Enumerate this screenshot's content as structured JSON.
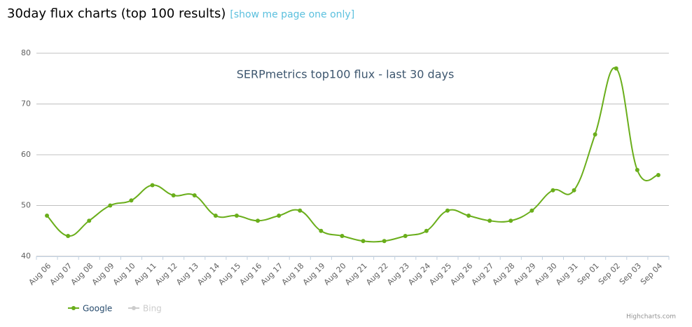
{
  "header": {
    "title": "30day flux charts (top 100 results)",
    "link": "[show me page one only]"
  },
  "chart_data": {
    "type": "line",
    "title": "SERPmetrics top100 flux - last 30 days",
    "categories": [
      "Aug 06",
      "Aug 07",
      "Aug 08",
      "Aug 09",
      "Aug 10",
      "Aug 11",
      "Aug 12",
      "Aug 13",
      "Aug 14",
      "Aug 15",
      "Aug 16",
      "Aug 17",
      "Aug 18",
      "Aug 19",
      "Aug 20",
      "Aug 21",
      "Aug 22",
      "Aug 23",
      "Aug 24",
      "Aug 25",
      "Aug 26",
      "Aug 27",
      "Aug 28",
      "Aug 29",
      "Aug 30",
      "Aug 31",
      "Sep 01",
      "Sep 02",
      "Sep 03",
      "Sep 04"
    ],
    "series": [
      {
        "name": "Google",
        "color": "#6aae1b",
        "values": [
          48,
          44,
          47,
          50,
          51,
          54,
          52,
          52,
          48,
          48,
          47,
          48,
          49,
          45,
          44,
          43,
          43,
          44,
          45,
          49,
          48,
          47,
          47,
          49,
          53,
          53,
          64,
          77,
          57,
          56
        ]
      },
      {
        "name": "Bing",
        "color": "#cccccc"
      }
    ],
    "ylim": [
      40,
      80
    ],
    "yticks": [
      40,
      50,
      60,
      70,
      80
    ],
    "grid": true,
    "credits": "Highcharts.com"
  }
}
